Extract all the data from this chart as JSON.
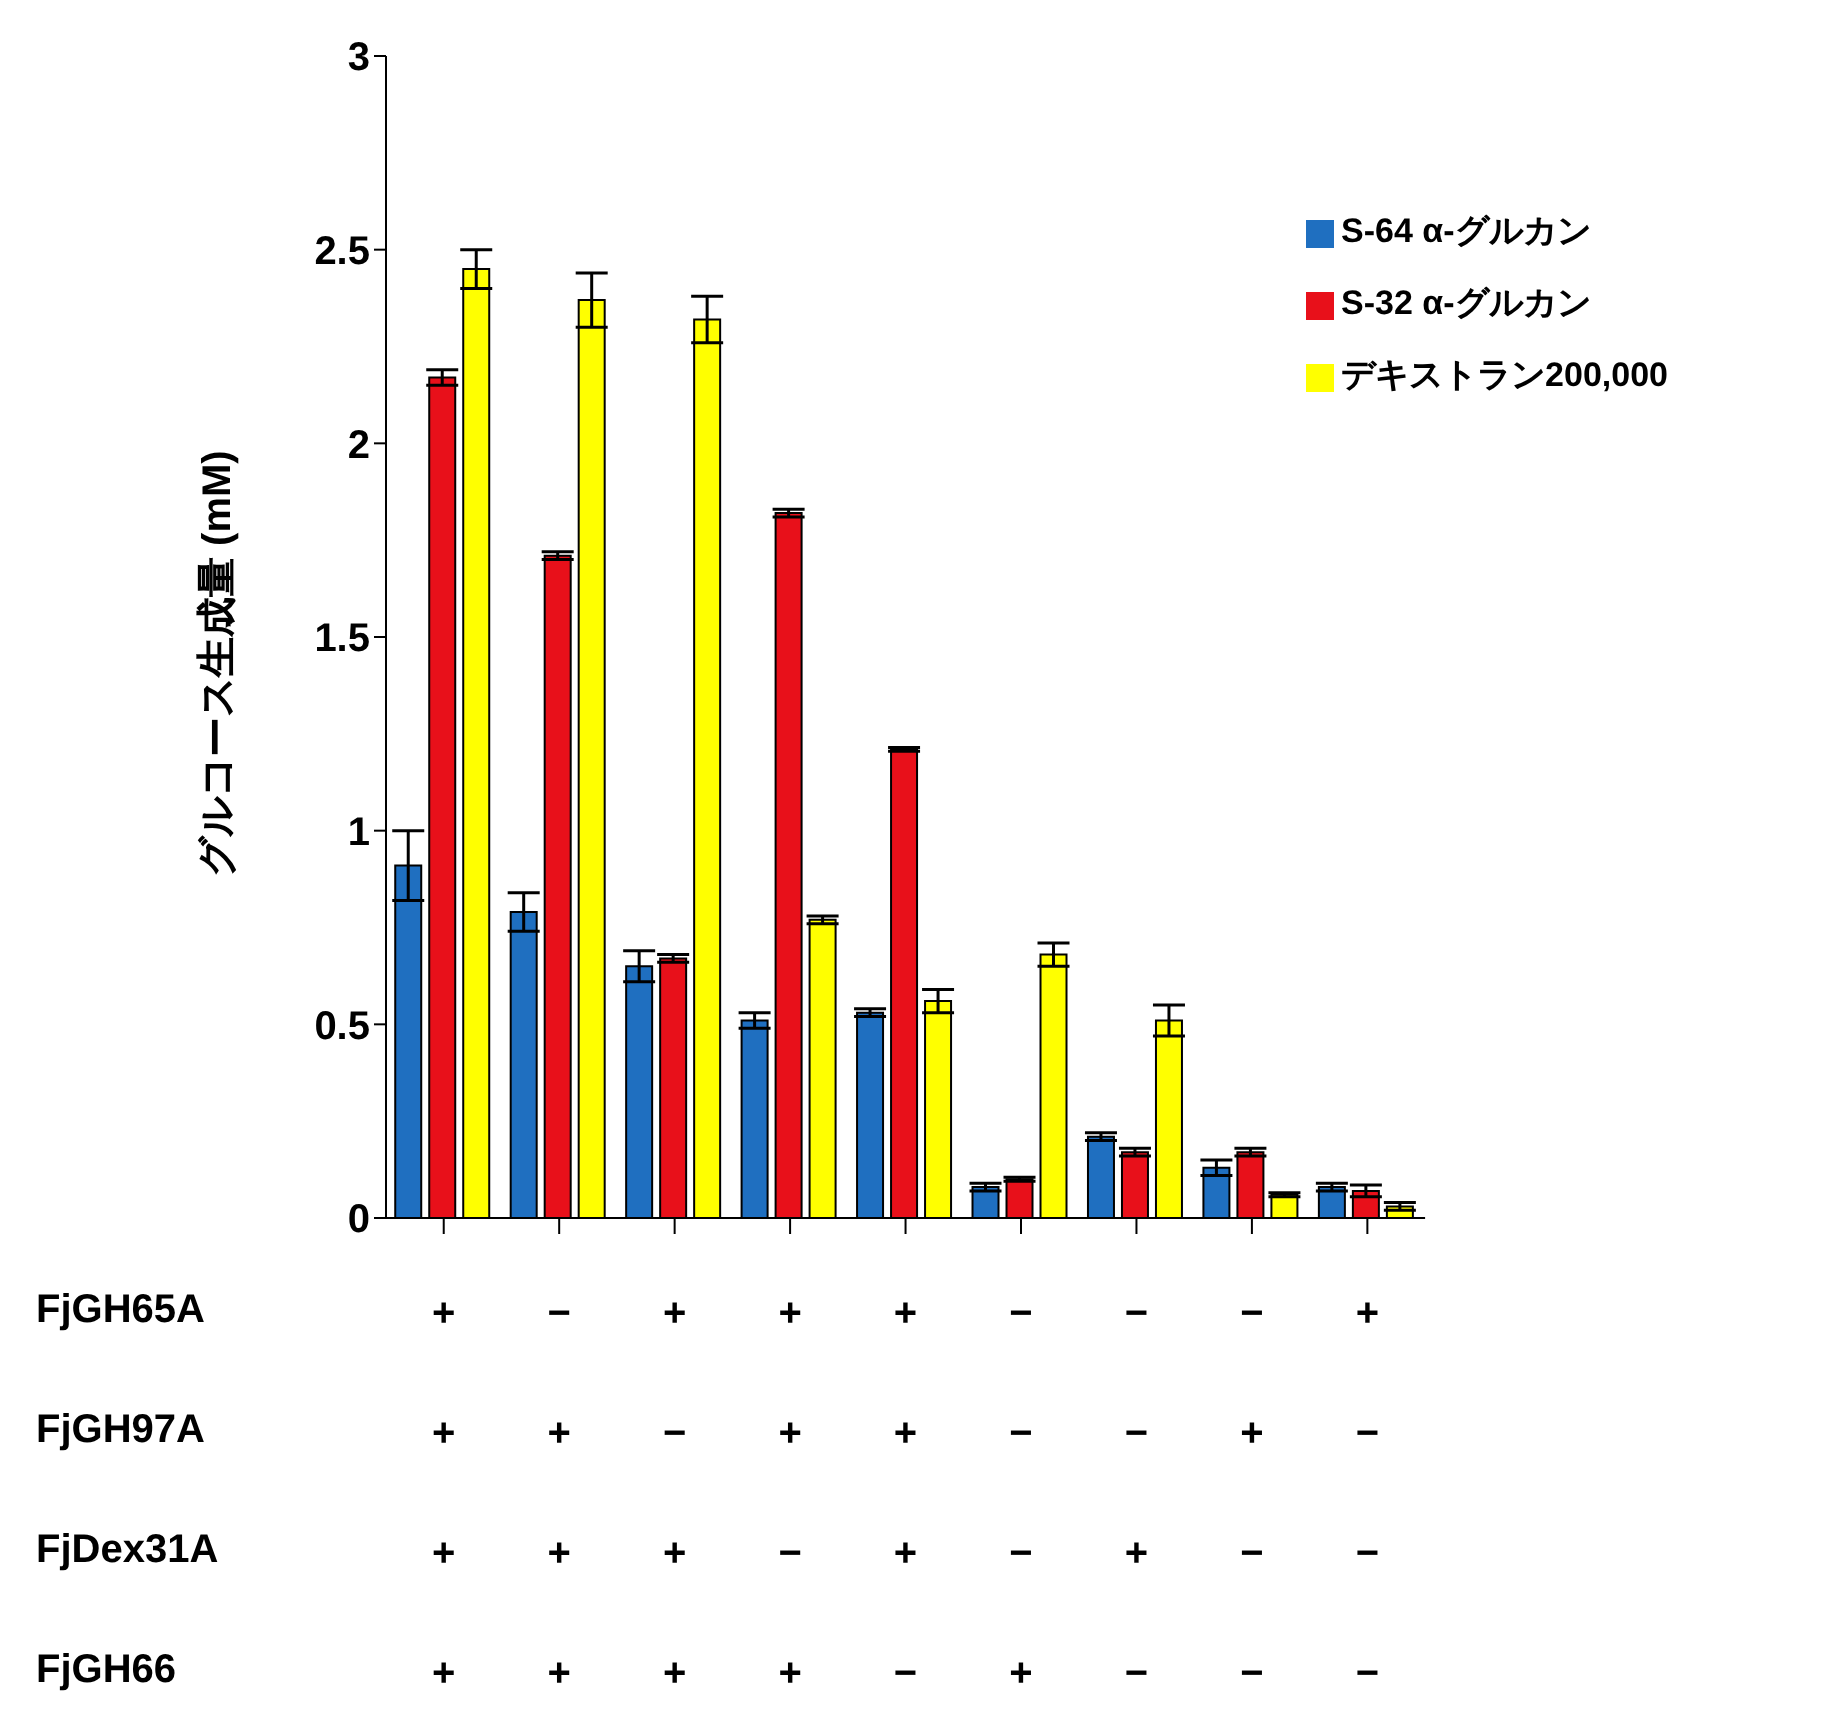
{
  "chart_data": {
    "type": "bar",
    "ylabel": "グルコース生成量 (mM)",
    "categories": [
      "+\n+\n+\n+",
      "−\n+\n+\n+",
      "+\n−\n+\n+",
      "+\n+\n−\n+",
      "+\n+\n+\n−",
      "−\n−\n−\n+",
      "−\n−\n+\n−",
      "−\n+\n−\n−",
      "+\n−\n−\n−"
    ],
    "series": [
      {
        "name": "S-64 α-グルカン",
        "color": "#1f6fc0",
        "values": [
          0.91,
          0.79,
          0.65,
          0.51,
          0.53,
          0.08,
          0.21,
          0.13,
          0.08
        ],
        "errors": [
          0.09,
          0.05,
          0.04,
          0.02,
          0.01,
          0.01,
          0.01,
          0.02,
          0.01
        ]
      },
      {
        "name": "S-32 α-グルカン",
        "color": "#e8101a",
        "values": [
          2.17,
          1.71,
          0.67,
          1.82,
          1.21,
          0.1,
          0.17,
          0.17,
          0.07
        ],
        "errors": [
          0.02,
          0.01,
          0.01,
          0.01,
          0.005,
          0.005,
          0.01,
          0.01,
          0.015
        ]
      },
      {
        "name": "デキストラン200,000",
        "color": "#ffff00",
        "values": [
          2.45,
          2.37,
          2.32,
          0.77,
          0.56,
          0.68,
          0.51,
          0.06,
          0.03
        ],
        "errors": [
          0.05,
          0.07,
          0.06,
          0.01,
          0.03,
          0.03,
          0.04,
          0.005,
          0.01
        ]
      }
    ],
    "ylim": [
      0,
      3
    ],
    "yticks": [
      0,
      0.5,
      1,
      1.5,
      2,
      2.5,
      3
    ],
    "legend": "top right",
    "annotations": [
      "FjGH65A",
      "FjGH97A",
      "FjDex31A",
      "FjGH66"
    ]
  }
}
